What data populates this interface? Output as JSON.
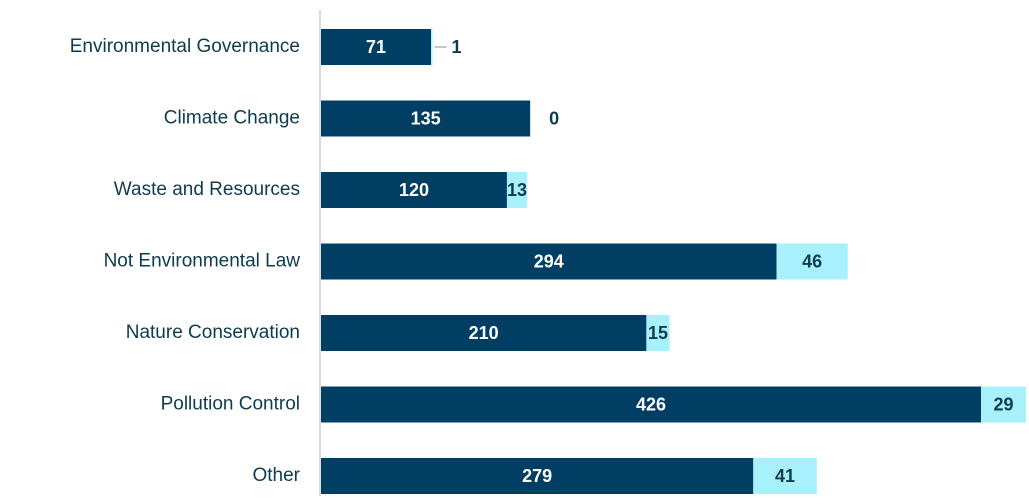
{
  "chart_data": {
    "type": "stacked-barh",
    "categories": [
      "Environmental Governance",
      "Climate Change",
      "Waste and Resources",
      "Not Environmental Law",
      "Nature Conservation",
      "Pollution Control",
      "Other"
    ],
    "series": [
      {
        "color": "#003f63",
        "values": [
          71,
          135,
          120,
          294,
          210,
          426,
          279
        ]
      },
      {
        "color": "#a8f0fb",
        "values": [
          1,
          0,
          13,
          46,
          15,
          29,
          41
        ]
      }
    ]
  }
}
